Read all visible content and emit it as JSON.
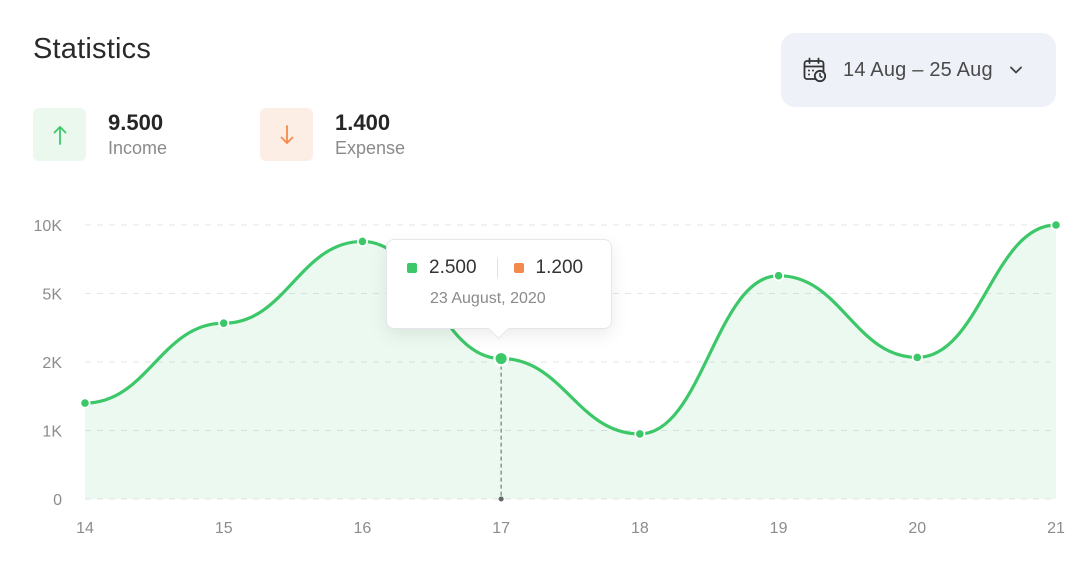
{
  "header": {
    "title": "Statistics",
    "date_range": "14 Aug – 25 Aug",
    "calendar_icon": "calendar-icon",
    "dropdown_icon": "chevron-down-icon"
  },
  "summary": {
    "income": {
      "value": "9.500",
      "label": "Income",
      "icon": "arrow-up-icon",
      "color": "#3cc768"
    },
    "expense": {
      "value": "1.400",
      "label": "Expense",
      "icon": "arrow-down-icon",
      "color": "#f3894d"
    }
  },
  "tooltip": {
    "income_value": "2.500",
    "expense_value": "1.200",
    "date": "23 August, 2020",
    "income_color": "#3cc768",
    "expense_color": "#f3894d"
  },
  "chart_data": {
    "type": "area",
    "x": [
      14,
      15,
      16,
      17,
      18,
      19,
      20,
      21
    ],
    "y_ticks": [
      "0",
      "1K",
      "2K",
      "5K",
      "10K"
    ],
    "series": [
      {
        "values": [
          1400,
          3700,
          8800,
          2150,
          950,
          6300,
          2200,
          10000
        ],
        "color": "#3cc768"
      }
    ],
    "highlight_x": 17,
    "grid": true
  }
}
